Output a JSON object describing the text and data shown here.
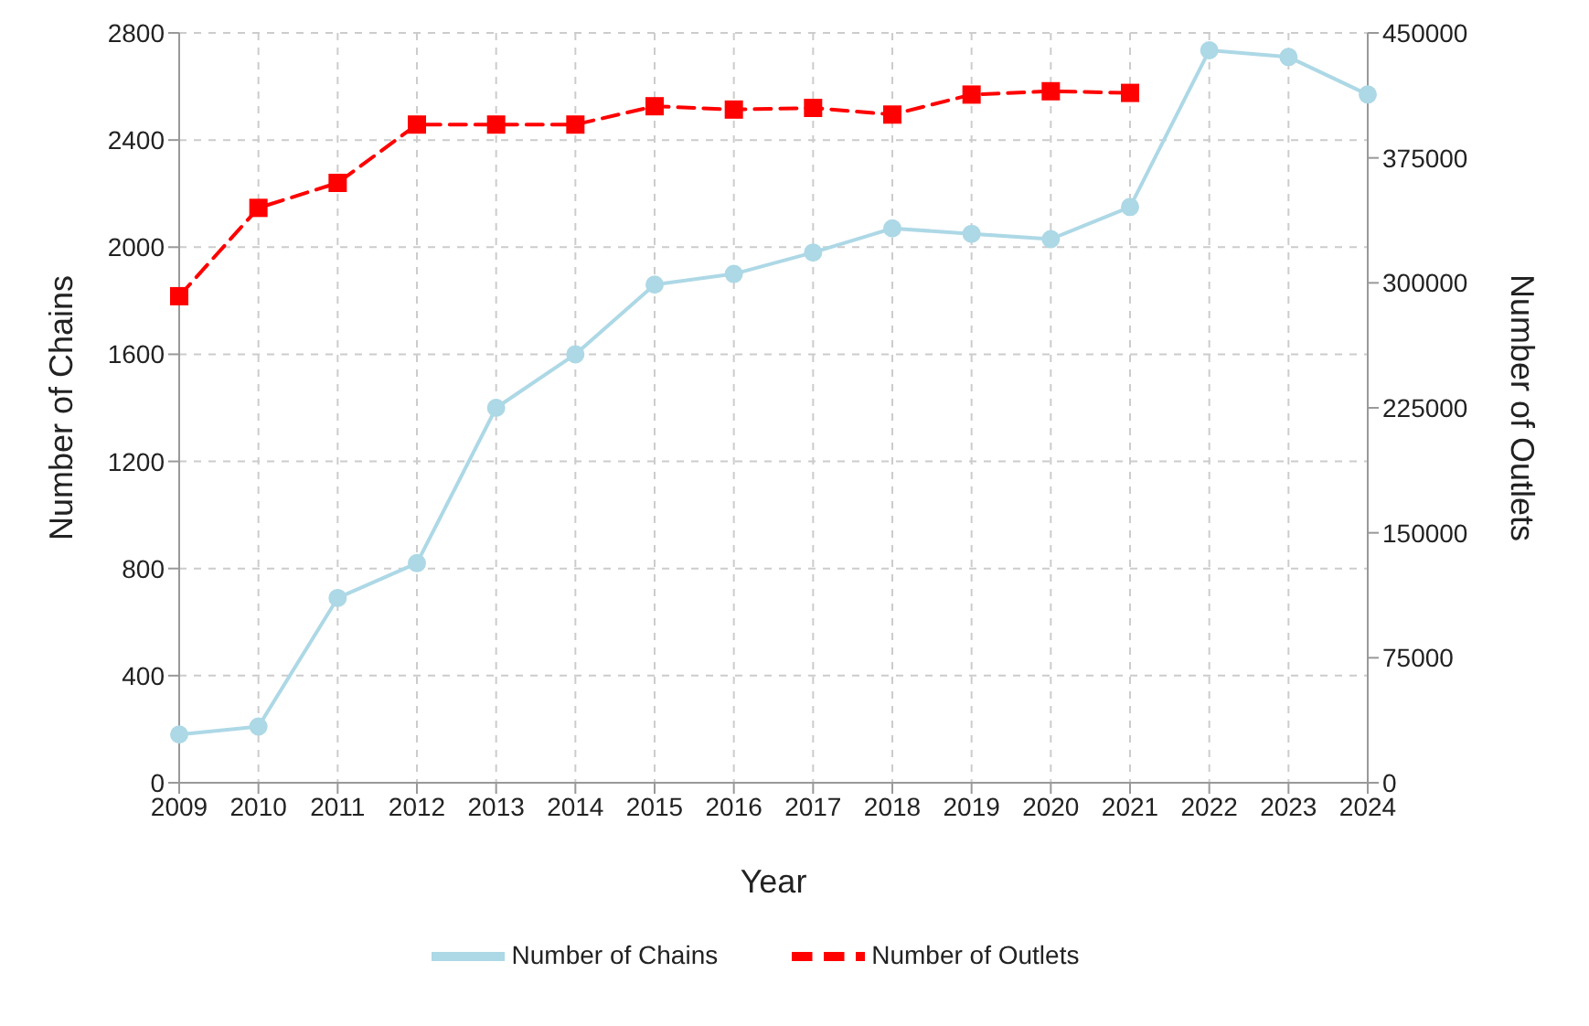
{
  "chart_data": {
    "type": "line",
    "xlabel": "Year",
    "ylabel": "Number of Chains",
    "y2label": "Number of Outlets",
    "categories": [
      "2009",
      "2010",
      "2011",
      "2012",
      "2013",
      "2014",
      "2015",
      "2016",
      "2017",
      "2018",
      "2019",
      "2020",
      "2021",
      "2022",
      "2023",
      "2024"
    ],
    "series": [
      {
        "name": "Number of Chains",
        "color": "#add8e6",
        "marker": "circle",
        "line_style": "solid",
        "values": [
          180,
          210,
          690,
          820,
          1400,
          1600,
          1860,
          1900,
          1980,
          2070,
          2050,
          2030,
          2150,
          2735,
          2710,
          2570
        ]
      },
      {
        "name": "Number of Outlets",
        "color": "#ff0000",
        "marker": "square",
        "line_style": "dashed",
        "axis": "y2",
        "values": [
          292000,
          345000,
          360000,
          395000,
          395000,
          395000,
          406000,
          404000,
          405000,
          401000,
          413000,
          415000,
          414000,
          null,
          null,
          null
        ]
      }
    ],
    "ylim": [
      0,
      2800
    ],
    "yticks": [
      0,
      400,
      800,
      1200,
      1600,
      2000,
      2400,
      2800
    ],
    "y2lim": [
      0,
      450000
    ],
    "y2ticks": [
      0,
      75000,
      150000,
      225000,
      300000,
      375000,
      450000
    ],
    "grid": true,
    "legend": "bottom"
  }
}
